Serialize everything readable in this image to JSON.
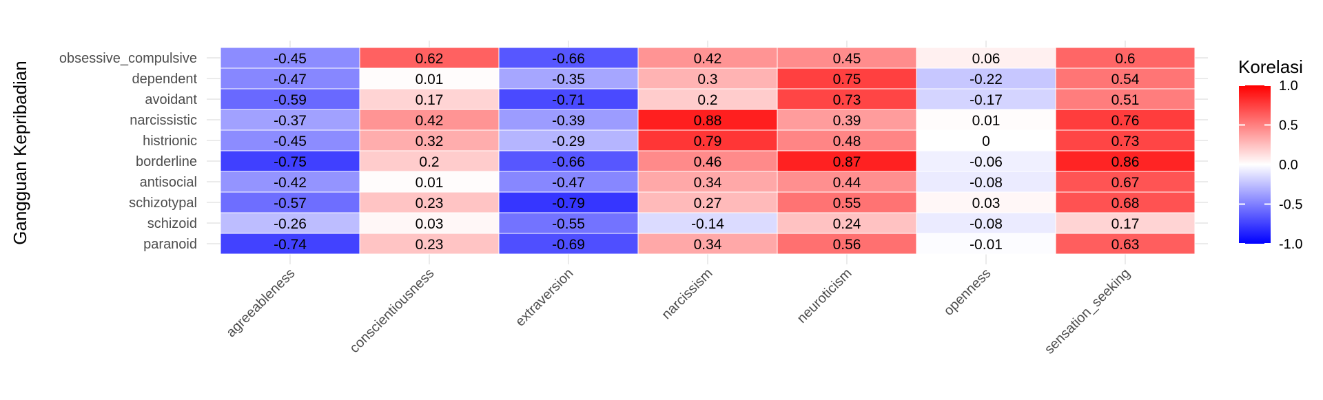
{
  "chart_data": {
    "type": "heatmap",
    "title": "",
    "xlabel": "",
    "ylabel": "Gangguan Kepribadian",
    "x_categories": [
      "agreeableness",
      "conscientiousness",
      "extraversion",
      "narcissism",
      "neuroticism",
      "openness",
      "sensation_seeking"
    ],
    "y_categories": [
      "obsessive_compulsive",
      "dependent",
      "avoidant",
      "narcissistic",
      "histrionic",
      "borderline",
      "antisocial",
      "schizotypal",
      "schizoid",
      "paranoid"
    ],
    "values": [
      [
        -0.45,
        0.62,
        -0.66,
        0.42,
        0.45,
        0.06,
        0.6
      ],
      [
        -0.47,
        0.01,
        -0.35,
        0.3,
        0.75,
        -0.22,
        0.54
      ],
      [
        -0.59,
        0.17,
        -0.71,
        0.2,
        0.73,
        -0.17,
        0.51
      ],
      [
        -0.37,
        0.42,
        -0.39,
        0.88,
        0.39,
        0.01,
        0.76
      ],
      [
        -0.45,
        0.32,
        -0.29,
        0.79,
        0.48,
        0,
        0.73
      ],
      [
        -0.75,
        0.2,
        -0.66,
        0.46,
        0.87,
        -0.06,
        0.86
      ],
      [
        -0.42,
        0.01,
        -0.47,
        0.34,
        0.44,
        -0.08,
        0.67
      ],
      [
        -0.57,
        0.23,
        -0.79,
        0.27,
        0.55,
        0.03,
        0.68
      ],
      [
        -0.26,
        0.03,
        -0.55,
        -0.14,
        0.24,
        -0.08,
        0.17
      ],
      [
        -0.74,
        0.23,
        -0.69,
        0.34,
        0.56,
        -0.01,
        0.63
      ]
    ],
    "legend": {
      "title": "Korelasi",
      "placement": "right",
      "range": [
        -1,
        1
      ],
      "ticks": [
        "1.0",
        "0.5",
        "0.0",
        "-0.5",
        "-1.0"
      ],
      "low_color": "#0000ff",
      "mid_color": "#ffffff",
      "high_color": "#ff0000"
    },
    "grid": true
  }
}
